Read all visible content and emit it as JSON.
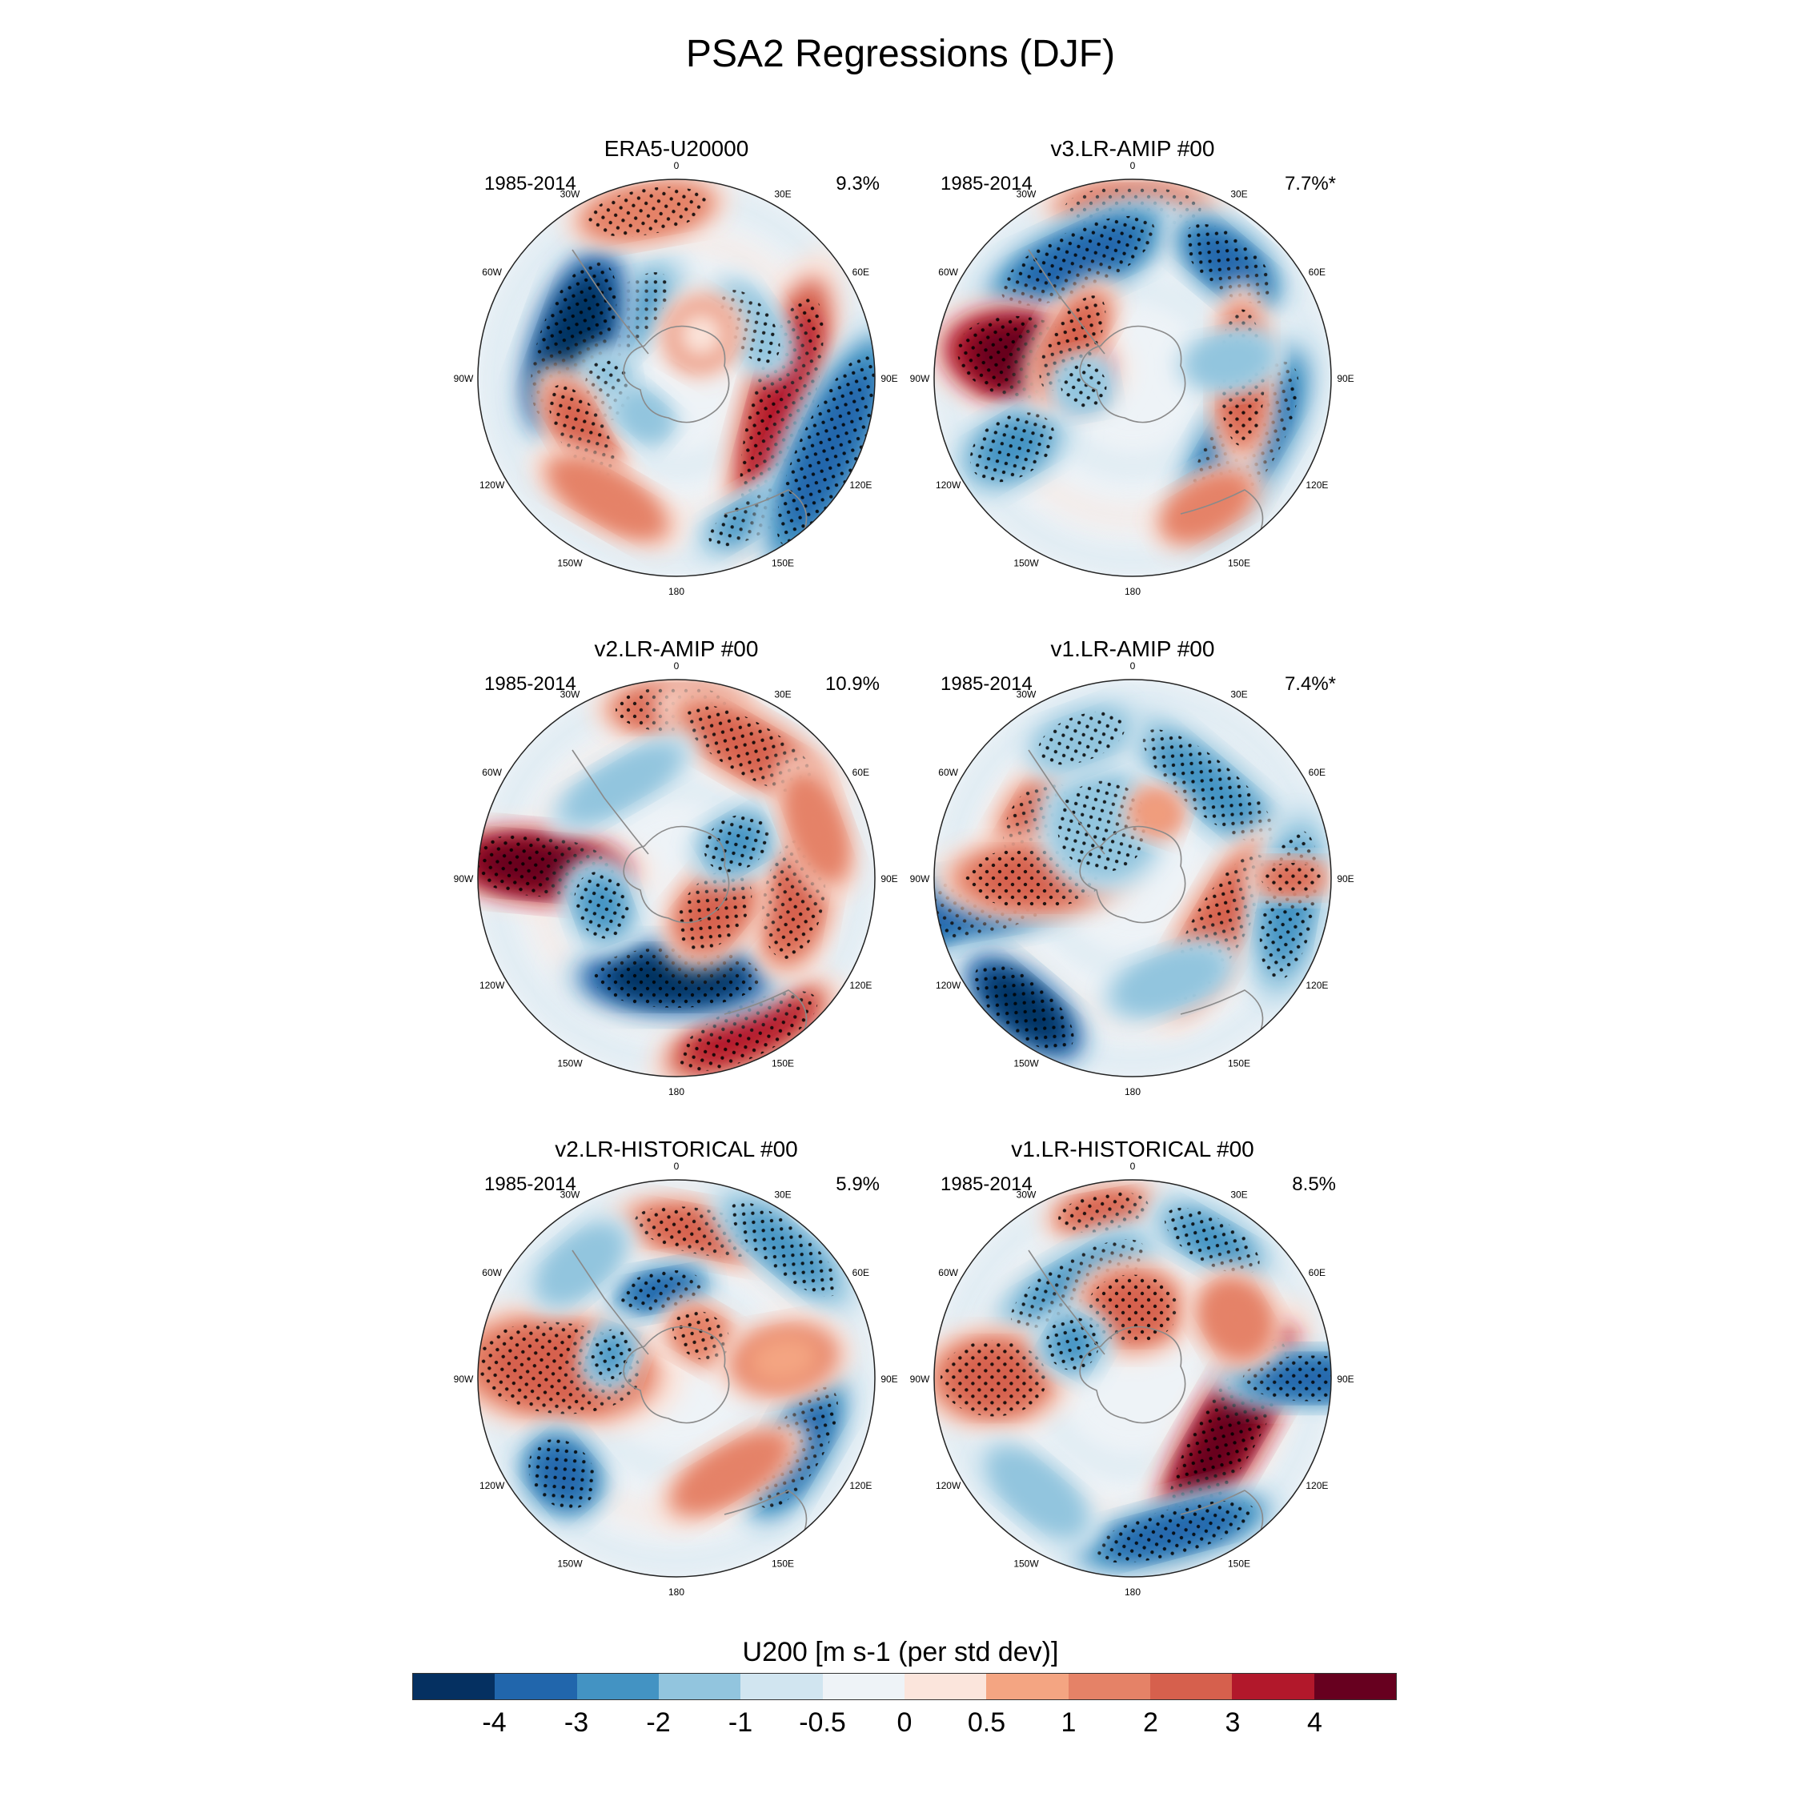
{
  "chart_data": {
    "type": "polar-contour-map",
    "title": "PSA2 Regressions (DJF)",
    "colorbar": {
      "title": "U200 [m s-1 (per std dev)]",
      "levels": [
        "-4",
        "-3",
        "-2",
        "-1",
        "-0.5",
        "0",
        "0.5",
        "1",
        "2",
        "3",
        "4"
      ],
      "colors": [
        "#053061",
        "#2166ac",
        "#4393c3",
        "#92c5de",
        "#d1e5f0",
        "#eef3f7",
        "#fbe5dc",
        "#f4a582",
        "#e58267",
        "#d6604d",
        "#b2182b",
        "#67001f"
      ]
    },
    "lon_labels": [
      "0",
      "30E",
      "60E",
      "90E",
      "120E",
      "150E",
      "180",
      "150W",
      "120W",
      "90W",
      "60W",
      "30W"
    ],
    "panels": [
      {
        "name": "ERA5-U20000",
        "period": "1985-2014",
        "percent": "9.3%"
      },
      {
        "name": "v3.LR-AMIP  #00",
        "period": "1985-2014",
        "percent": "7.7%*"
      },
      {
        "name": "v2.LR-AMIP  #00",
        "period": "1985-2014",
        "percent": "10.9%"
      },
      {
        "name": "v1.LR-AMIP  #00",
        "period": "1985-2014",
        "percent": "7.4%*"
      },
      {
        "name": "v2.LR-HISTORICAL  #00",
        "period": "1985-2014",
        "percent": "5.9%"
      },
      {
        "name": "v1.LR-HISTORICAL  #00",
        "period": "1985-2014",
        "percent": "8.5%"
      }
    ]
  }
}
